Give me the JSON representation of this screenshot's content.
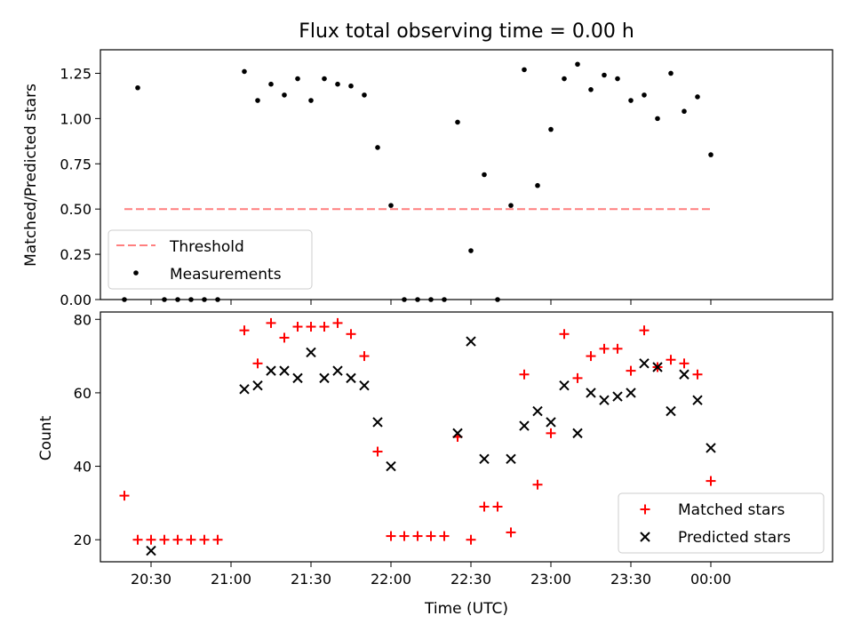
{
  "chart_data": [
    {
      "type": "scatter",
      "title": "Flux total observing time = 0.00 h",
      "xlabel": "",
      "ylabel": "Matched/Predicted stars",
      "ylim": [
        0,
        1.38
      ],
      "yticks": [
        "0.00",
        "0.25",
        "0.50",
        "0.75",
        "1.00",
        "1.25"
      ],
      "legend": {
        "placement": "lower-left",
        "entries": [
          "Threshold",
          "Measurements"
        ]
      },
      "threshold": {
        "name": "Threshold",
        "value": 0.5,
        "x_start": "20:20",
        "x_end": "00:00",
        "color": "#ff7f7f"
      },
      "series": [
        {
          "name": "Measurements",
          "color": "#000000",
          "points": [
            [
              "20:20",
              0.0
            ],
            [
              "20:25",
              1.17
            ],
            [
              "20:35",
              0.0
            ],
            [
              "20:40",
              0.0
            ],
            [
              "20:45",
              0.0
            ],
            [
              "20:50",
              0.0
            ],
            [
              "20:55",
              0.0
            ],
            [
              "21:05",
              1.26
            ],
            [
              "21:10",
              1.1
            ],
            [
              "21:15",
              1.19
            ],
            [
              "21:20",
              1.13
            ],
            [
              "21:25",
              1.22
            ],
            [
              "21:30",
              1.1
            ],
            [
              "21:35",
              1.22
            ],
            [
              "21:40",
              1.19
            ],
            [
              "21:45",
              1.18
            ],
            [
              "21:50",
              1.13
            ],
            [
              "21:55",
              0.84
            ],
            [
              "22:00",
              0.52
            ],
            [
              "22:05",
              0.0
            ],
            [
              "22:10",
              0.0
            ],
            [
              "22:15",
              0.0
            ],
            [
              "22:20",
              0.0
            ],
            [
              "22:25",
              0.98
            ],
            [
              "22:30",
              0.27
            ],
            [
              "22:35",
              0.69
            ],
            [
              "22:40",
              0.0
            ],
            [
              "22:45",
              0.52
            ],
            [
              "22:50",
              1.27
            ],
            [
              "22:55",
              0.63
            ],
            [
              "23:00",
              0.94
            ],
            [
              "23:05",
              1.22
            ],
            [
              "23:10",
              1.3
            ],
            [
              "23:15",
              1.16
            ],
            [
              "23:20",
              1.24
            ],
            [
              "23:25",
              1.22
            ],
            [
              "23:30",
              1.1
            ],
            [
              "23:35",
              1.13
            ],
            [
              "23:40",
              1.0
            ],
            [
              "23:45",
              1.25
            ],
            [
              "23:50",
              1.04
            ],
            [
              "23:55",
              1.12
            ],
            [
              "00:00",
              0.8
            ]
          ]
        }
      ]
    },
    {
      "type": "scatter",
      "title": "",
      "xlabel": "Time (UTC)",
      "ylabel": "Count",
      "ylim": [
        14,
        82
      ],
      "yticks": [
        "20",
        "40",
        "60",
        "80"
      ],
      "xticks": [
        "20:30",
        "21:00",
        "21:30",
        "22:00",
        "22:30",
        "23:00",
        "23:30",
        "00:00"
      ],
      "legend": {
        "placement": "lower-right",
        "entries": [
          "Matched stars",
          "Predicted stars"
        ]
      },
      "series": [
        {
          "name": "Matched stars",
          "marker": "plus",
          "color": "#ff0000",
          "points": [
            [
              "20:20",
              32
            ],
            [
              "20:25",
              20
            ],
            [
              "20:30",
              20
            ],
            [
              "20:35",
              20
            ],
            [
              "20:40",
              20
            ],
            [
              "20:45",
              20
            ],
            [
              "20:50",
              20
            ],
            [
              "20:55",
              20
            ],
            [
              "21:05",
              77
            ],
            [
              "21:10",
              68
            ],
            [
              "21:15",
              79
            ],
            [
              "21:20",
              75
            ],
            [
              "21:25",
              78
            ],
            [
              "21:30",
              78
            ],
            [
              "21:35",
              78
            ],
            [
              "21:40",
              79
            ],
            [
              "21:45",
              76
            ],
            [
              "21:50",
              70
            ],
            [
              "21:55",
              44
            ],
            [
              "22:00",
              21
            ],
            [
              "22:05",
              21
            ],
            [
              "22:10",
              21
            ],
            [
              "22:15",
              21
            ],
            [
              "22:20",
              21
            ],
            [
              "22:25",
              48
            ],
            [
              "22:30",
              20
            ],
            [
              "22:35",
              29
            ],
            [
              "22:40",
              29
            ],
            [
              "22:45",
              22
            ],
            [
              "22:50",
              65
            ],
            [
              "22:55",
              35
            ],
            [
              "23:00",
              49
            ],
            [
              "23:05",
              76
            ],
            [
              "23:10",
              64
            ],
            [
              "23:15",
              70
            ],
            [
              "23:20",
              72
            ],
            [
              "23:25",
              72
            ],
            [
              "23:30",
              66
            ],
            [
              "23:35",
              77
            ],
            [
              "23:40",
              67
            ],
            [
              "23:45",
              69
            ],
            [
              "23:50",
              68
            ],
            [
              "23:55",
              65
            ],
            [
              "00:00",
              36
            ]
          ]
        },
        {
          "name": "Predicted stars",
          "marker": "x",
          "color": "#000000",
          "points": [
            [
              "20:30",
              17
            ],
            [
              "21:05",
              61
            ],
            [
              "21:10",
              62
            ],
            [
              "21:15",
              66
            ],
            [
              "21:20",
              66
            ],
            [
              "21:25",
              64
            ],
            [
              "21:30",
              71
            ],
            [
              "21:35",
              64
            ],
            [
              "21:40",
              66
            ],
            [
              "21:45",
              64
            ],
            [
              "21:50",
              62
            ],
            [
              "21:55",
              52
            ],
            [
              "22:00",
              40
            ],
            [
              "22:25",
              49
            ],
            [
              "22:30",
              74
            ],
            [
              "22:35",
              42
            ],
            [
              "22:45",
              42
            ],
            [
              "22:50",
              51
            ],
            [
              "22:55",
              55
            ],
            [
              "23:00",
              52
            ],
            [
              "23:05",
              62
            ],
            [
              "23:10",
              49
            ],
            [
              "23:15",
              60
            ],
            [
              "23:20",
              58
            ],
            [
              "23:25",
              59
            ],
            [
              "23:30",
              60
            ],
            [
              "23:35",
              68
            ],
            [
              "23:40",
              67
            ],
            [
              "23:45",
              55
            ],
            [
              "23:50",
              65
            ],
            [
              "23:55",
              58
            ],
            [
              "00:00",
              45
            ]
          ]
        }
      ]
    }
  ]
}
